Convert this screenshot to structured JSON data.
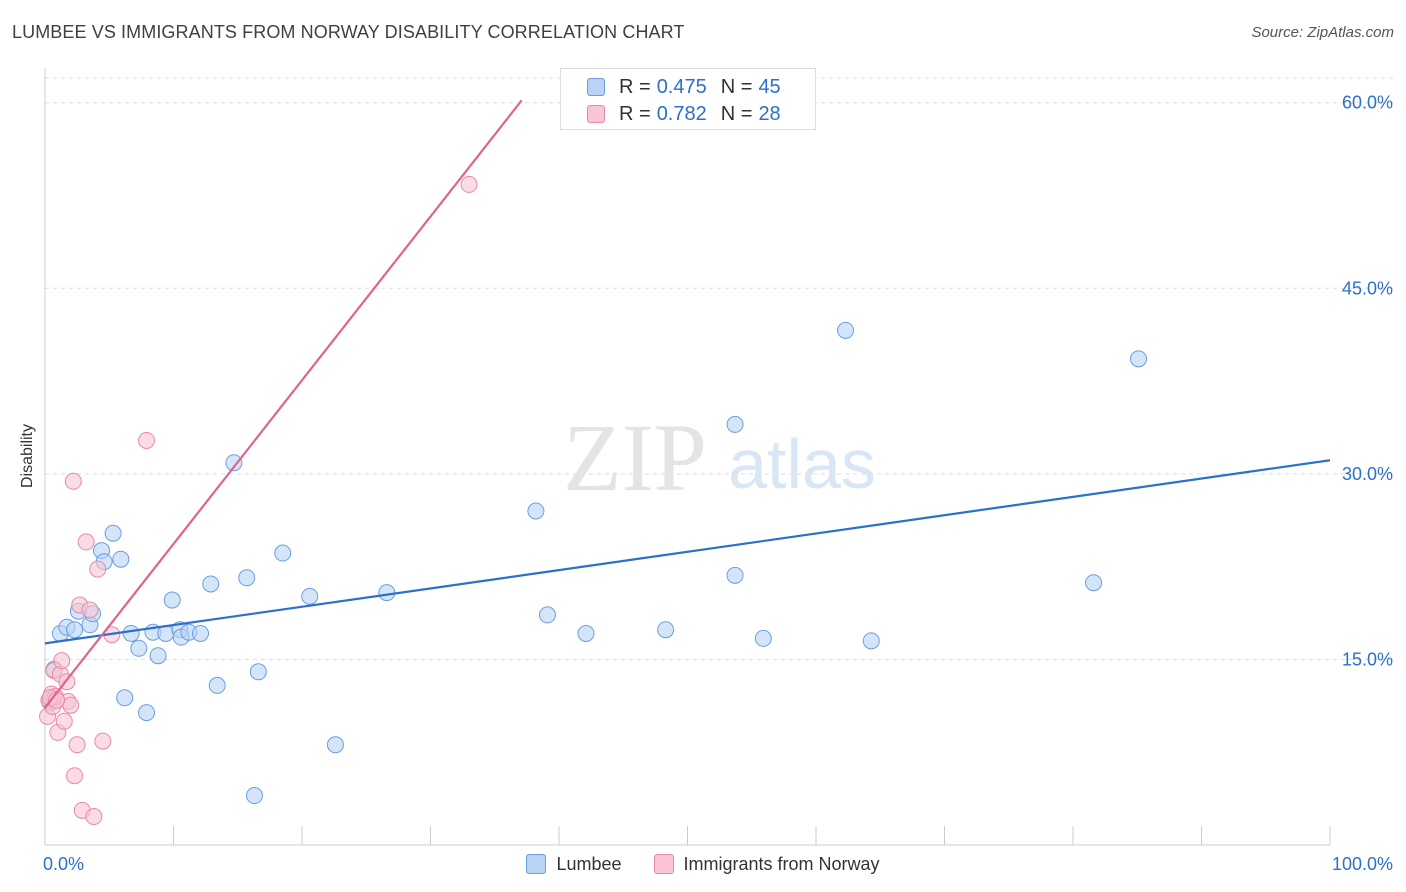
{
  "header": {
    "title": "LUMBEE VS IMMIGRANTS FROM NORWAY DISABILITY CORRELATION CHART",
    "source": "Source: ZipAtlas.com"
  },
  "watermark": {
    "zip": "ZIP",
    "atlas": "atlas"
  },
  "legend_top": {
    "rows": [
      {
        "r_label": "R =",
        "r_value": "0.475",
        "n_label": "N =",
        "n_value": "45"
      },
      {
        "r_label": "R =",
        "r_value": "0.782",
        "n_label": "N =",
        "n_value": "28"
      }
    ]
  },
  "legend_bottom": {
    "series1": "Lumbee",
    "series2": "Immigrants from Norway"
  },
  "colors": {
    "lumbee_fill": "#b9d3f5",
    "lumbee_stroke": "#6a9ee0",
    "lumbee_line": "#2c6fce",
    "norway_fill": "#f9c4d4",
    "norway_stroke": "#e68aa8",
    "norway_line": "#e0638e",
    "tick_label": "#2c6fce",
    "grid": "#dddddd"
  },
  "chart_data": {
    "type": "scatter",
    "title": "LUMBEE VS IMMIGRANTS FROM NORWAY DISABILITY CORRELATION CHART",
    "xlabel": "",
    "ylabel": "Disability",
    "xlim": [
      0,
      100
    ],
    "ylim": [
      0,
      62
    ],
    "x_tick_labels": [
      {
        "value": 0,
        "label": "0.0%"
      },
      {
        "value": 100,
        "label": "100.0%"
      }
    ],
    "y_tick_labels": [
      {
        "value": 15,
        "label": "15.0%"
      },
      {
        "value": 30,
        "label": "30.0%"
      },
      {
        "value": 45,
        "label": "45.0%"
      },
      {
        "value": 60,
        "label": "60.0%"
      }
    ],
    "series": [
      {
        "name": "Lumbee",
        "r": 0.475,
        "n": 45,
        "trend": {
          "x": [
            0,
            100
          ],
          "y": [
            16.3,
            31.1
          ]
        },
        "points": [
          [
            0.7,
            14.2
          ],
          [
            1.2,
            17.1
          ],
          [
            1.7,
            17.6
          ],
          [
            2.3,
            17.4
          ],
          [
            2.6,
            18.9
          ],
          [
            3.5,
            17.8
          ],
          [
            3.7,
            18.7
          ],
          [
            4.4,
            23.8
          ],
          [
            4.6,
            22.9
          ],
          [
            5.3,
            25.2
          ],
          [
            5.9,
            23.1
          ],
          [
            6.2,
            11.9
          ],
          [
            6.7,
            17.1
          ],
          [
            7.3,
            15.9
          ],
          [
            7.9,
            10.7
          ],
          [
            8.4,
            17.2
          ],
          [
            8.8,
            15.3
          ],
          [
            9.4,
            17.1
          ],
          [
            9.9,
            19.8
          ],
          [
            10.5,
            17.4
          ],
          [
            10.6,
            16.8
          ],
          [
            11.2,
            17.2
          ],
          [
            12.1,
            17.1
          ],
          [
            12.9,
            21.1
          ],
          [
            13.4,
            12.9
          ],
          [
            15.7,
            21.6
          ],
          [
            16.3,
            4.0
          ],
          [
            16.6,
            14.0
          ],
          [
            14.7,
            30.9
          ],
          [
            18.5,
            23.6
          ],
          [
            20.6,
            20.1
          ],
          [
            22.6,
            8.1
          ],
          [
            26.6,
            20.4
          ],
          [
            38.2,
            27.0
          ],
          [
            39.1,
            18.6
          ],
          [
            42.1,
            17.1
          ],
          [
            48.3,
            17.4
          ],
          [
            53.7,
            34.0
          ],
          [
            53.7,
            21.8
          ],
          [
            55.9,
            16.7
          ],
          [
            62.3,
            41.6
          ],
          [
            64.3,
            16.5
          ],
          [
            81.6,
            21.2
          ],
          [
            85.1,
            39.3
          ],
          [
            0.4,
            11.5
          ]
        ]
      },
      {
        "name": "Immigrants from Norway",
        "r": 0.782,
        "n": 28,
        "trend": {
          "x": [
            0,
            37.1
          ],
          "y": [
            11.1,
            60.2
          ]
        },
        "points": [
          [
            0.2,
            10.4
          ],
          [
            0.3,
            11.7
          ],
          [
            0.5,
            12.2
          ],
          [
            0.6,
            11.2
          ],
          [
            0.7,
            14.1
          ],
          [
            0.8,
            12.0
          ],
          [
            1.0,
            9.1
          ],
          [
            1.2,
            13.8
          ],
          [
            1.3,
            14.9
          ],
          [
            1.5,
            10.0
          ],
          [
            1.7,
            13.2
          ],
          [
            1.8,
            11.6
          ],
          [
            2.0,
            11.3
          ],
          [
            2.2,
            29.4
          ],
          [
            2.3,
            5.6
          ],
          [
            2.5,
            8.1
          ],
          [
            2.7,
            19.4
          ],
          [
            2.9,
            2.8
          ],
          [
            3.2,
            24.5
          ],
          [
            3.5,
            19.0
          ],
          [
            3.8,
            2.3
          ],
          [
            4.1,
            22.3
          ],
          [
            4.5,
            8.4
          ],
          [
            5.2,
            17.0
          ],
          [
            7.9,
            32.7
          ],
          [
            33.0,
            53.4
          ],
          [
            0.4,
            11.9
          ],
          [
            0.9,
            11.7
          ]
        ]
      }
    ]
  }
}
